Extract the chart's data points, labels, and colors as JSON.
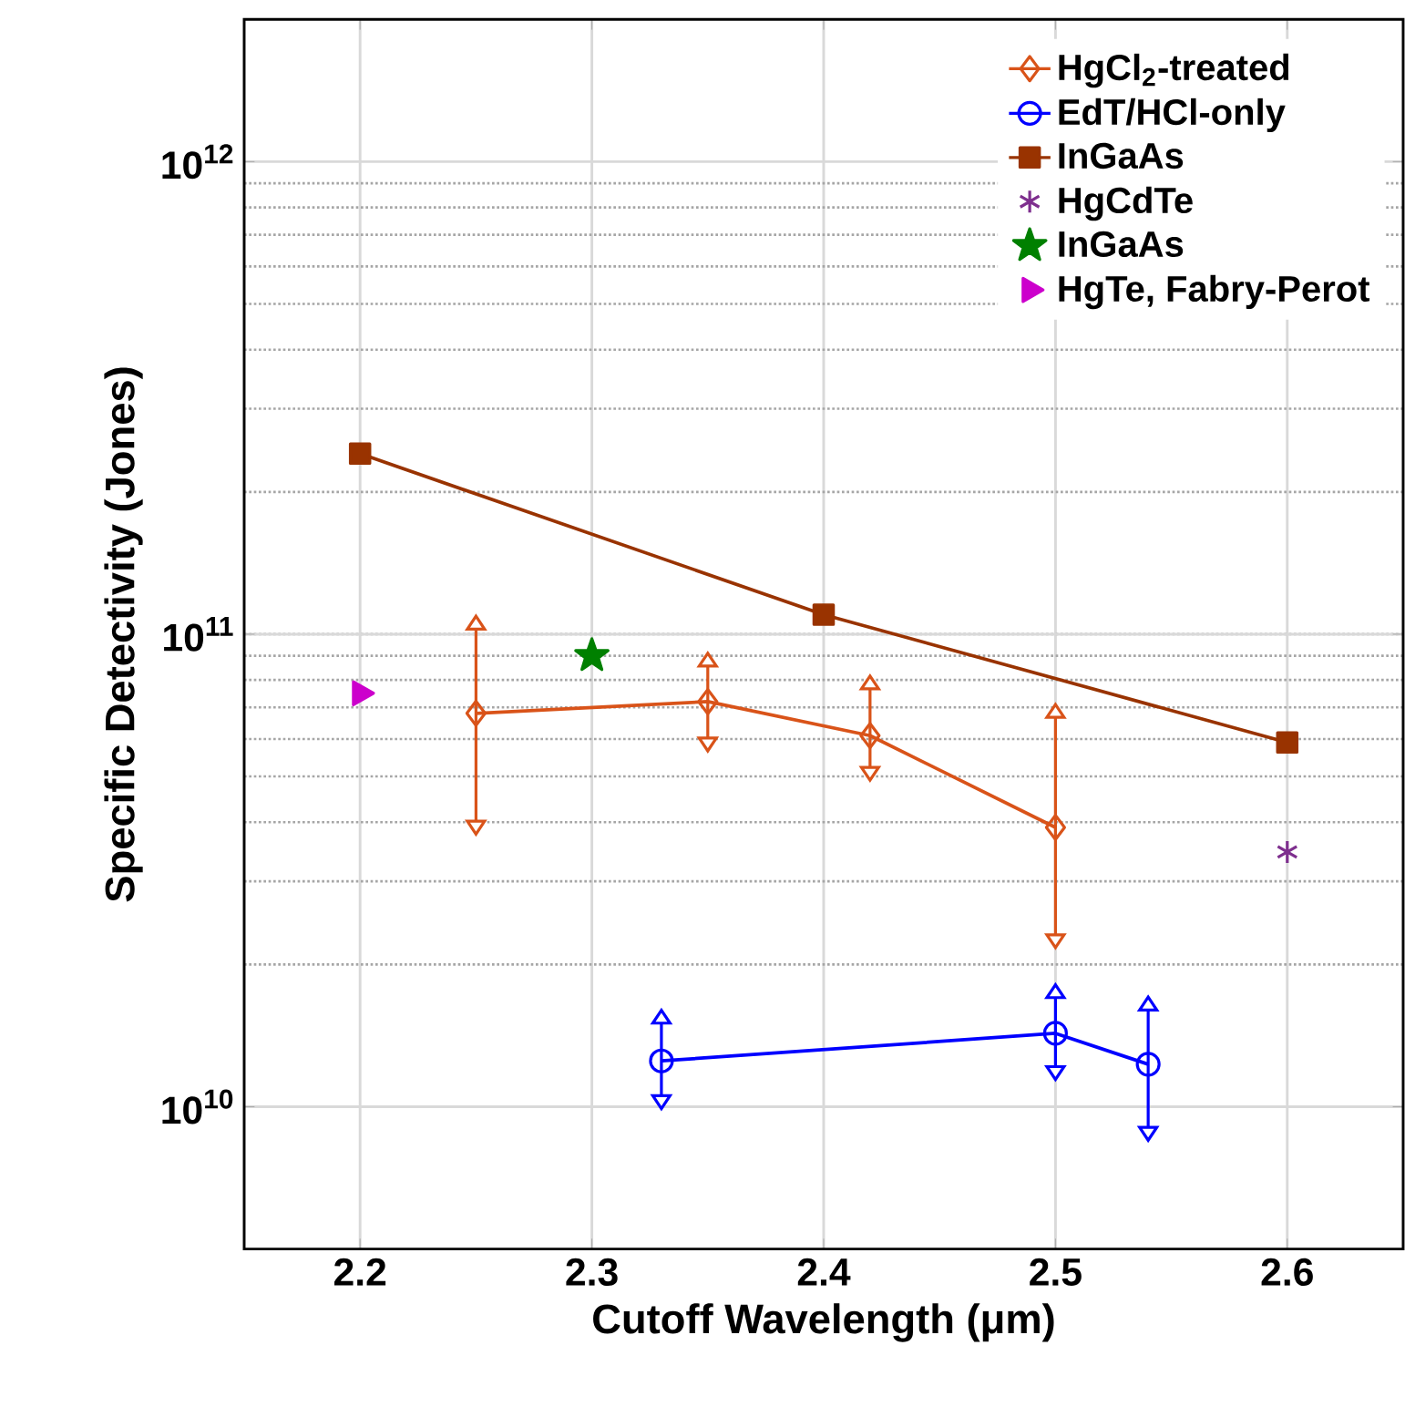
{
  "chart_data": {
    "type": "line",
    "xlabel": "Cutoff Wavelength (μm)",
    "ylabel": "Specific Detectivity (Jones)",
    "xlim": [
      2.15,
      2.65
    ],
    "xticks": [
      2.2,
      2.3,
      2.4,
      2.5,
      2.6
    ],
    "ylim": [
      5000000000.0,
      2000000000000.0
    ],
    "yticks": [
      {
        "value": 10000000000.0,
        "label": "10$^{10}$"
      },
      {
        "value": 100000000000.0,
        "label": "10$^{11}$"
      },
      {
        "value": 1000000000000.0,
        "label": "10$^{12}$"
      }
    ],
    "log": true,
    "grid": true,
    "legend": "top right",
    "series": [
      {
        "name": "HgCl$_{2}$-treated",
        "marker": "diamond",
        "color": "#d95319",
        "x": [
          2.25,
          2.35,
          2.42,
          2.5
        ],
        "values": [
          68000000000.0,
          72000000000.0,
          61000000000.0,
          39000000000.0
        ],
        "errors": [
          [
            40000000000.0,
            103000000000.0
          ],
          [
            60000000000.0,
            86000000000.0
          ],
          [
            52000000000.0,
            77000000000.0
          ],
          [
            23000000000.0,
            67000000000.0
          ]
        ]
      },
      {
        "name": "EdT/HCl-only",
        "marker": "circle",
        "color": "#0000ff",
        "x": [
          2.33,
          2.5,
          2.54
        ],
        "values": [
          12500000000.0,
          14300000000.0,
          12300000000.0
        ],
        "errors": [
          [
            10500000000.0,
            15100000000.0
          ],
          [
            12100000000.0,
            17100000000.0
          ],
          [
            9000000000.0,
            16100000000.0
          ]
        ]
      },
      {
        "name": "InGaAs",
        "marker": "square",
        "color": "#993300",
        "x": [
          2.2,
          2.4,
          2.6
        ],
        "values": [
          241000000000.0,
          110000000000.0,
          59000000000.0
        ]
      },
      {
        "name": "HgCdTe",
        "type": "scatter",
        "marker": "cross",
        "color": "#7e2f8e",
        "x": [
          2.6
        ],
        "values": [
          34600000000.0
        ]
      },
      {
        "name": "InGaAs",
        "type": "scatter",
        "marker": "star",
        "color": "#008000",
        "x": [
          2.3
        ],
        "values": [
          90000000000.0
        ]
      },
      {
        "name": "HgTe, Fabry-Perot",
        "type": "scatter",
        "marker": "triangle",
        "color": "#cc00cc",
        "x": [
          2.2
        ],
        "values": [
          75000000000.0
        ]
      }
    ]
  }
}
